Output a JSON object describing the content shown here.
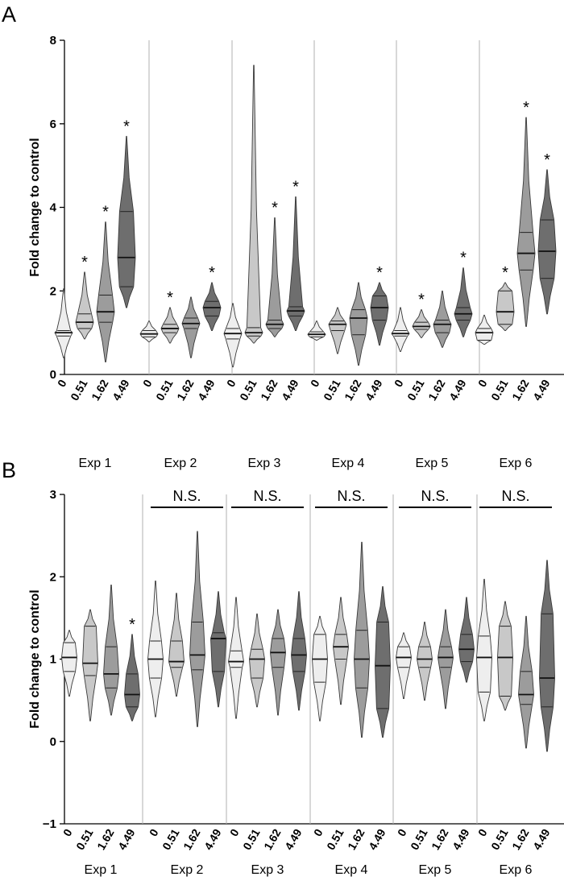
{
  "panels": [
    {
      "letter": "A",
      "chart_data": {
        "type": "violin",
        "ylabel": "Fold change to control",
        "ylim": [
          0,
          8
        ],
        "yticks": [
          0,
          2,
          4,
          6,
          8
        ],
        "dose_labels": [
          "0",
          "0.51",
          "1.62",
          "4.49"
        ],
        "groups": [
          {
            "name": "Exp 1",
            "bracket_label": "",
            "violins": [
              {
                "dose": "0",
                "min": 0.4,
                "q1": 0.92,
                "median": 1.0,
                "q3": 1.05,
                "max": 2.05,
                "mark": ""
              },
              {
                "dose": "0.51",
                "min": 0.85,
                "q1": 1.1,
                "median": 1.25,
                "q3": 1.45,
                "max": 2.45,
                "mark": "*"
              },
              {
                "dose": "1.62",
                "min": 0.3,
                "q1": 1.25,
                "median": 1.5,
                "q3": 1.9,
                "max": 3.65,
                "mark": "*"
              },
              {
                "dose": "4.49",
                "min": 1.6,
                "q1": 2.1,
                "median": 2.8,
                "q3": 3.9,
                "max": 5.7,
                "mark": "*"
              }
            ]
          },
          {
            "name": "Exp 2",
            "bracket_label": "",
            "violins": [
              {
                "dose": "0",
                "min": 0.78,
                "q1": 0.9,
                "median": 0.97,
                "q3": 1.05,
                "max": 1.28,
                "mark": ""
              },
              {
                "dose": "0.51",
                "min": 0.75,
                "q1": 1.0,
                "median": 1.1,
                "q3": 1.2,
                "max": 1.6,
                "mark": "*"
              },
              {
                "dose": "1.62",
                "min": 0.4,
                "q1": 1.1,
                "median": 1.22,
                "q3": 1.35,
                "max": 1.85,
                "mark": ""
              },
              {
                "dose": "4.49",
                "min": 1.05,
                "q1": 1.4,
                "median": 1.6,
                "q3": 1.75,
                "max": 2.2,
                "mark": "*"
              }
            ]
          },
          {
            "name": "Exp 3",
            "bracket_label": "",
            "violins": [
              {
                "dose": "0",
                "min": 0.18,
                "q1": 0.85,
                "median": 0.98,
                "q3": 1.1,
                "max": 1.7,
                "mark": ""
              },
              {
                "dose": "0.51",
                "min": 0.75,
                "q1": 0.92,
                "median": 1.0,
                "q3": 1.12,
                "max": 7.4,
                "mark": ""
              },
              {
                "dose": "1.62",
                "min": 0.9,
                "q1": 1.1,
                "median": 1.2,
                "q3": 1.3,
                "max": 3.75,
                "mark": "*"
              },
              {
                "dose": "4.49",
                "min": 1.05,
                "q1": 1.4,
                "median": 1.52,
                "q3": 1.62,
                "max": 4.25,
                "mark": "*"
              }
            ]
          },
          {
            "name": "Exp 4",
            "bracket_label": "",
            "violins": [
              {
                "dose": "0",
                "min": 0.82,
                "q1": 0.9,
                "median": 0.96,
                "q3": 1.02,
                "max": 1.28,
                "mark": ""
              },
              {
                "dose": "0.51",
                "min": 0.5,
                "q1": 1.05,
                "median": 1.2,
                "q3": 1.28,
                "max": 1.6,
                "mark": ""
              },
              {
                "dose": "1.62",
                "min": 0.22,
                "q1": 0.95,
                "median": 1.35,
                "q3": 1.55,
                "max": 2.2,
                "mark": ""
              },
              {
                "dose": "4.49",
                "min": 0.7,
                "q1": 1.3,
                "median": 1.6,
                "q3": 1.88,
                "max": 2.2,
                "mark": "*"
              }
            ]
          },
          {
            "name": "Exp 5",
            "bracket_label": "",
            "violins": [
              {
                "dose": "0",
                "min": 0.55,
                "q1": 0.92,
                "median": 0.98,
                "q3": 1.05,
                "max": 1.6,
                "mark": ""
              },
              {
                "dose": "0.51",
                "min": 0.88,
                "q1": 1.08,
                "median": 1.15,
                "q3": 1.25,
                "max": 1.55,
                "mark": "*"
              },
              {
                "dose": "1.62",
                "min": 0.65,
                "q1": 1.0,
                "median": 1.2,
                "q3": 1.3,
                "max": 2.0,
                "mark": ""
              },
              {
                "dose": "4.49",
                "min": 0.9,
                "q1": 1.3,
                "median": 1.45,
                "q3": 1.6,
                "max": 2.55,
                "mark": "*"
              }
            ]
          },
          {
            "name": "Exp 6",
            "bracket_label": "",
            "violins": [
              {
                "dose": "0",
                "min": 0.72,
                "q1": 0.82,
                "median": 1.0,
                "q3": 1.1,
                "max": 1.42,
                "mark": ""
              },
              {
                "dose": "0.51",
                "min": 1.05,
                "q1": 1.2,
                "median": 1.5,
                "q3": 2.0,
                "max": 2.2,
                "mark": "*"
              },
              {
                "dose": "1.62",
                "min": 1.15,
                "q1": 2.5,
                "median": 2.9,
                "q3": 3.4,
                "max": 6.15,
                "mark": "*"
              },
              {
                "dose": "4.49",
                "min": 1.45,
                "q1": 2.3,
                "median": 2.95,
                "q3": 3.7,
                "max": 4.9,
                "mark": "*"
              }
            ]
          }
        ]
      }
    },
    {
      "letter": "B",
      "chart_data": {
        "type": "violin",
        "ylabel": "Fold change to control",
        "ylim": [
          -1,
          3
        ],
        "yticks": [
          -1,
          0,
          1,
          2,
          3
        ],
        "dose_labels": [
          "0",
          "0.51",
          "1.62",
          "4.49"
        ],
        "groups": [
          {
            "name": "Exp 1",
            "bracket_label": "",
            "violins": [
              {
                "dose": "0",
                "min": 0.55,
                "q1": 0.85,
                "median": 1.02,
                "q3": 1.2,
                "max": 1.35,
                "mark": ""
              },
              {
                "dose": "0.51",
                "min": 0.25,
                "q1": 0.8,
                "median": 0.95,
                "q3": 1.4,
                "max": 1.6,
                "mark": ""
              },
              {
                "dose": "1.62",
                "min": 0.32,
                "q1": 0.65,
                "median": 0.82,
                "q3": 1.15,
                "max": 1.9,
                "mark": ""
              },
              {
                "dose": "4.49",
                "min": 0.25,
                "q1": 0.42,
                "median": 0.57,
                "q3": 0.82,
                "max": 1.3,
                "mark": "*"
              }
            ]
          },
          {
            "name": "Exp 2",
            "bracket_label": "N.S.",
            "violins": [
              {
                "dose": "0",
                "min": 0.3,
                "q1": 0.77,
                "median": 1.0,
                "q3": 1.22,
                "max": 1.95,
                "mark": ""
              },
              {
                "dose": "0.51",
                "min": 0.55,
                "q1": 0.9,
                "median": 0.97,
                "q3": 1.22,
                "max": 1.8,
                "mark": ""
              },
              {
                "dose": "1.62",
                "min": 0.18,
                "q1": 0.87,
                "median": 1.05,
                "q3": 1.45,
                "max": 2.55,
                "mark": ""
              },
              {
                "dose": "4.49",
                "min": 0.42,
                "q1": 0.85,
                "median": 1.25,
                "q3": 1.32,
                "max": 1.82,
                "mark": ""
              }
            ]
          },
          {
            "name": "Exp 3",
            "bracket_label": "N.S.",
            "violins": [
              {
                "dose": "0",
                "min": 0.28,
                "q1": 0.9,
                "median": 0.97,
                "q3": 1.1,
                "max": 1.75,
                "mark": ""
              },
              {
                "dose": "0.51",
                "min": 0.42,
                "q1": 0.77,
                "median": 1.0,
                "q3": 1.12,
                "max": 1.55,
                "mark": ""
              },
              {
                "dose": "1.62",
                "min": 0.32,
                "q1": 0.9,
                "median": 1.08,
                "q3": 1.25,
                "max": 1.6,
                "mark": ""
              },
              {
                "dose": "4.49",
                "min": 0.38,
                "q1": 0.85,
                "median": 1.05,
                "q3": 1.25,
                "max": 1.82,
                "mark": ""
              }
            ]
          },
          {
            "name": "Exp 4",
            "bracket_label": "N.S.",
            "violins": [
              {
                "dose": "0",
                "min": 0.25,
                "q1": 0.72,
                "median": 1.0,
                "q3": 1.3,
                "max": 1.52,
                "mark": ""
              },
              {
                "dose": "0.51",
                "min": 0.45,
                "q1": 1.0,
                "median": 1.15,
                "q3": 1.3,
                "max": 1.75,
                "mark": ""
              },
              {
                "dose": "1.62",
                "min": 0.05,
                "q1": 0.65,
                "median": 1.0,
                "q3": 1.35,
                "max": 2.42,
                "mark": ""
              },
              {
                "dose": "4.49",
                "min": 0.05,
                "q1": 0.4,
                "median": 0.92,
                "q3": 1.45,
                "max": 1.88,
                "mark": ""
              }
            ]
          },
          {
            "name": "Exp 5",
            "bracket_label": "N.S.",
            "violins": [
              {
                "dose": "0",
                "min": 0.52,
                "q1": 0.9,
                "median": 1.02,
                "q3": 1.15,
                "max": 1.32,
                "mark": ""
              },
              {
                "dose": "0.51",
                "min": 0.5,
                "q1": 0.9,
                "median": 1.0,
                "q3": 1.15,
                "max": 1.45,
                "mark": ""
              },
              {
                "dose": "1.62",
                "min": 0.4,
                "q1": 0.9,
                "median": 1.02,
                "q3": 1.15,
                "max": 1.6,
                "mark": ""
              },
              {
                "dose": "4.49",
                "min": 0.72,
                "q1": 0.97,
                "median": 1.12,
                "q3": 1.3,
                "max": 1.75,
                "mark": ""
              }
            ]
          },
          {
            "name": "Exp 6",
            "bracket_label": "N.S.",
            "violins": [
              {
                "dose": "0",
                "min": 0.25,
                "q1": 0.6,
                "median": 1.02,
                "q3": 1.28,
                "max": 1.97,
                "mark": ""
              },
              {
                "dose": "0.51",
                "min": 0.38,
                "q1": 0.55,
                "median": 1.02,
                "q3": 1.4,
                "max": 1.7,
                "mark": ""
              },
              {
                "dose": "1.62",
                "min": -0.08,
                "q1": 0.45,
                "median": 0.57,
                "q3": 0.85,
                "max": 1.52,
                "mark": ""
              },
              {
                "dose": "4.49",
                "min": -0.12,
                "q1": 0.42,
                "median": 0.77,
                "q3": 1.55,
                "max": 2.2,
                "mark": ""
              }
            ]
          }
        ]
      }
    }
  ],
  "colors": {
    "dose_fills": [
      "#eeeeee",
      "#c8c8c8",
      "#9c9c9c",
      "#6e6e6e"
    ],
    "outline": "#3a3a3a",
    "divider": "#b0b0b0",
    "axis": "#000000"
  }
}
